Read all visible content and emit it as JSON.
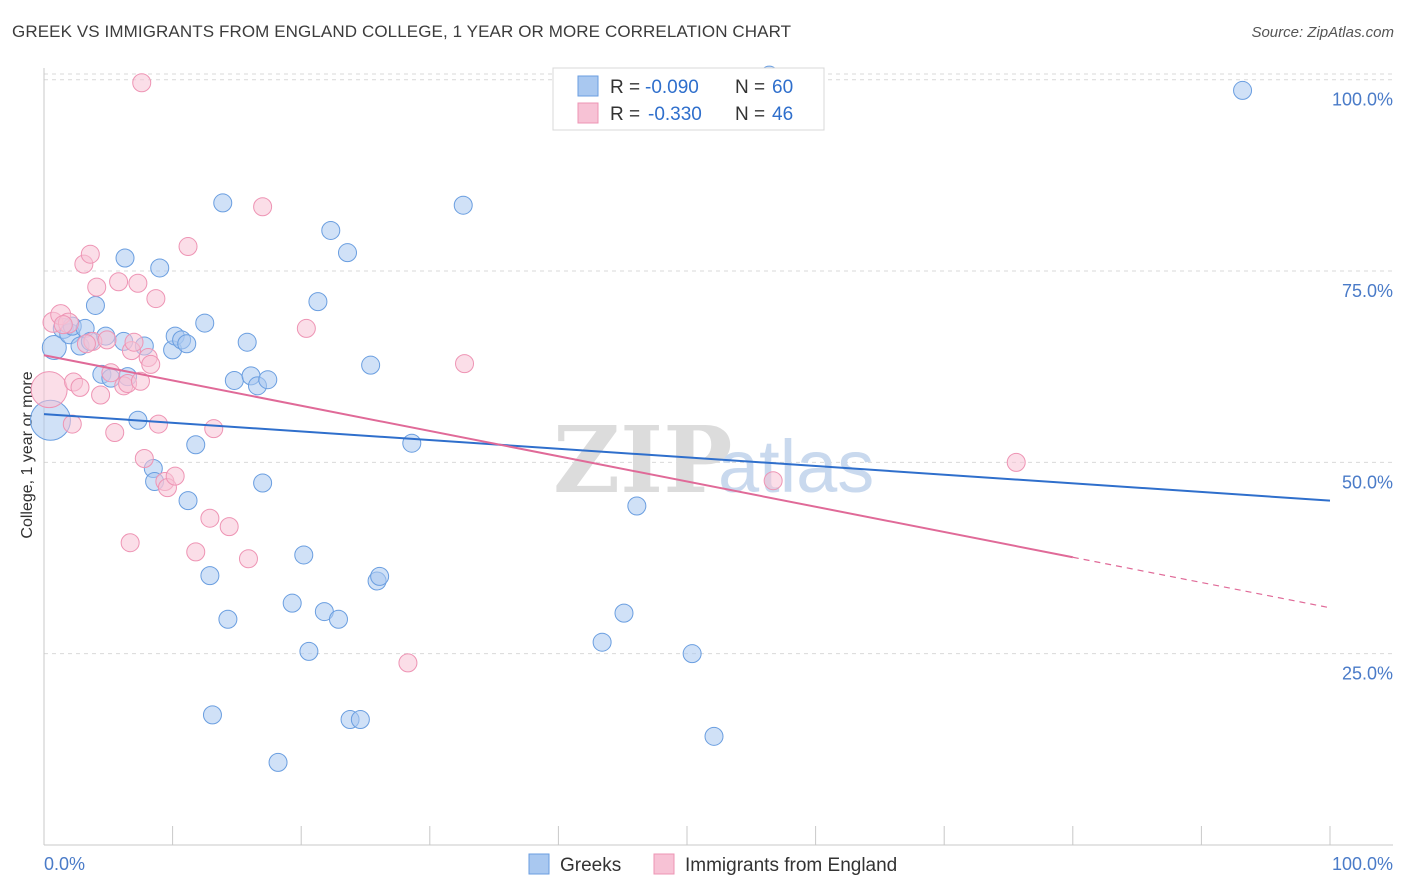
{
  "title": "GREEK VS IMMIGRANTS FROM ENGLAND COLLEGE, 1 YEAR OR MORE CORRELATION CHART",
  "source": "Source: ZipAtlas.com",
  "watermark": {
    "zip": "ZIP",
    "atlas": "atlas"
  },
  "chart_data": {
    "type": "scatter",
    "title": "GREEK VS IMMIGRANTS FROM ENGLAND COLLEGE, 1 YEAR OR MORE CORRELATION CHART",
    "xlabel": "",
    "ylabel": "College, 1 year or more",
    "xlim": [
      0,
      100
    ],
    "ylim": [
      0,
      102
    ],
    "x_tick_labels": [
      "0.0%",
      "100.0%"
    ],
    "y_ticks": [
      25,
      50,
      75,
      100
    ],
    "y_tick_labels": [
      "25.0%",
      "50.0%",
      "75.0%",
      "100.0%"
    ],
    "grid": true,
    "legend_position": "top-center",
    "stats": [
      {
        "r_label": "R =",
        "r_value": "-0.090",
        "n_label": "N =",
        "n_value": "60"
      },
      {
        "r_label": "R =",
        "r_value": "-0.330",
        "n_label": "N =",
        "n_value": "46"
      }
    ],
    "series": [
      {
        "name": "Greeks",
        "color": "#6a9ee0",
        "fill": "#a9c8f0",
        "line_color": "#2f6fcc",
        "trend": {
          "x0": 0,
          "y0": 56.3,
          "x1": 100,
          "y1": 45.0,
          "solid_until": 100
        },
        "points": [
          [
            0.5,
            55.5,
            20
          ],
          [
            0.8,
            65.0,
            12
          ],
          [
            1.5,
            67.5,
            10
          ],
          [
            2.0,
            66.8,
            10
          ],
          [
            2.2,
            67.8,
            9
          ],
          [
            2.8,
            65.2,
            9
          ],
          [
            3.2,
            67.5,
            9
          ],
          [
            3.6,
            65.8,
            9
          ],
          [
            4.0,
            70.5,
            9
          ],
          [
            4.8,
            66.5,
            9
          ],
          [
            4.5,
            61.5,
            9
          ],
          [
            5.2,
            61.0,
            9
          ],
          [
            6.2,
            65.8,
            9
          ],
          [
            6.5,
            61.2,
            9
          ],
          [
            6.3,
            76.7,
            9
          ],
          [
            7.3,
            55.5,
            9
          ],
          [
            7.8,
            65.2,
            9
          ],
          [
            8.5,
            49.2,
            9
          ],
          [
            8.6,
            47.5,
            9
          ],
          [
            9.0,
            75.4,
            9
          ],
          [
            10.0,
            64.7,
            9
          ],
          [
            10.2,
            66.5,
            9
          ],
          [
            10.7,
            66.0,
            9
          ],
          [
            11.1,
            65.5,
            9
          ],
          [
            11.2,
            45.0,
            9
          ],
          [
            11.8,
            52.3,
            9
          ],
          [
            12.5,
            68.2,
            9
          ],
          [
            12.9,
            35.2,
            9
          ],
          [
            13.1,
            17.0,
            9
          ],
          [
            13.9,
            83.9,
            9
          ],
          [
            14.3,
            29.5,
            9
          ],
          [
            14.8,
            60.7,
            9
          ],
          [
            15.8,
            65.7,
            9
          ],
          [
            16.1,
            61.3,
            9
          ],
          [
            16.6,
            60.0,
            9
          ],
          [
            17.0,
            47.3,
            9
          ],
          [
            17.4,
            60.8,
            9
          ],
          [
            18.2,
            10.8,
            9
          ],
          [
            19.3,
            31.6,
            9
          ],
          [
            20.2,
            37.9,
            9
          ],
          [
            20.6,
            25.3,
            9
          ],
          [
            21.3,
            71.0,
            9
          ],
          [
            21.8,
            30.5,
            9
          ],
          [
            22.3,
            80.3,
            9
          ],
          [
            22.9,
            29.5,
            9
          ],
          [
            23.6,
            77.4,
            9
          ],
          [
            23.8,
            16.4,
            9
          ],
          [
            24.6,
            16.4,
            9
          ],
          [
            25.4,
            62.7,
            9
          ],
          [
            25.9,
            34.5,
            9
          ],
          [
            26.1,
            35.1,
            9
          ],
          [
            28.6,
            52.5,
            9
          ],
          [
            32.6,
            83.6,
            9
          ],
          [
            43.4,
            26.5,
            9
          ],
          [
            45.1,
            30.3,
            9
          ],
          [
            46.1,
            44.3,
            9
          ],
          [
            50.4,
            25.0,
            9
          ],
          [
            52.1,
            14.2,
            9
          ],
          [
            56.4,
            100.6,
            9
          ],
          [
            93.2,
            98.6,
            9
          ]
        ]
      },
      {
        "name": "Immigrants from England",
        "color": "#ee94b4",
        "fill": "#f7c2d5",
        "line_color": "#e06a98",
        "trend": {
          "x0": 0,
          "y0": 64.0,
          "x1": 100,
          "y1": 31.0,
          "solid_until": 80
        },
        "points": [
          [
            0.4,
            59.5,
            18
          ],
          [
            0.7,
            68.3,
            10
          ],
          [
            1.3,
            69.3,
            10
          ],
          [
            1.9,
            68.2,
            10
          ],
          [
            2.3,
            60.5,
            9
          ],
          [
            2.8,
            59.8,
            9
          ],
          [
            2.2,
            55.0,
            9
          ],
          [
            3.1,
            75.9,
            9
          ],
          [
            3.6,
            77.2,
            9
          ],
          [
            3.8,
            65.8,
            9
          ],
          [
            4.1,
            72.9,
            9
          ],
          [
            4.4,
            58.8,
            9
          ],
          [
            5.2,
            61.7,
            9
          ],
          [
            5.5,
            53.9,
            9
          ],
          [
            5.8,
            73.6,
            9
          ],
          [
            6.2,
            60.0,
            9
          ],
          [
            6.5,
            60.3,
            9
          ],
          [
            6.8,
            64.6,
            9
          ],
          [
            6.7,
            39.5,
            9
          ],
          [
            7.0,
            65.7,
            9
          ],
          [
            7.5,
            60.6,
            9
          ],
          [
            7.3,
            73.4,
            9
          ],
          [
            7.8,
            50.5,
            9
          ],
          [
            8.1,
            63.7,
            9
          ],
          [
            8.3,
            62.8,
            9
          ],
          [
            8.7,
            71.4,
            9
          ],
          [
            9.4,
            47.5,
            9
          ],
          [
            9.6,
            46.7,
            9
          ],
          [
            10.2,
            48.2,
            9
          ],
          [
            11.2,
            78.2,
            9
          ],
          [
            11.8,
            38.3,
            9
          ],
          [
            12.9,
            42.7,
            9
          ],
          [
            13.2,
            54.4,
            9
          ],
          [
            14.4,
            41.6,
            9
          ],
          [
            15.9,
            37.4,
            9
          ],
          [
            17.0,
            83.4,
            9
          ],
          [
            20.4,
            67.5,
            9
          ],
          [
            28.3,
            23.8,
            9
          ],
          [
            32.7,
            62.9,
            9
          ],
          [
            56.7,
            47.6,
            9
          ],
          [
            75.6,
            50.0,
            9
          ],
          [
            7.6,
            99.6,
            9
          ],
          [
            1.5,
            68.0,
            9
          ],
          [
            4.9,
            66.0,
            9
          ],
          [
            3.3,
            65.5,
            9
          ],
          [
            8.9,
            55.0,
            9
          ]
        ]
      }
    ]
  }
}
